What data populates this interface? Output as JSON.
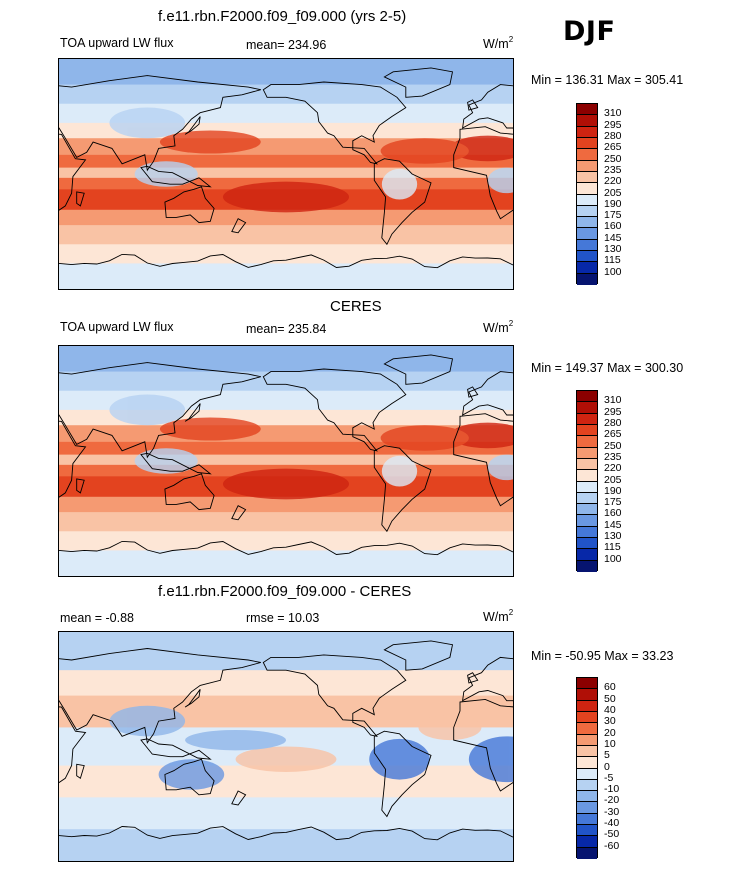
{
  "header": {
    "season": "DJF"
  },
  "panels": [
    {
      "id": "model",
      "title": "f.e11.rbn.F2000.f09_f09.000 (yrs 2-5)",
      "left_label": "TOA upward LW flux",
      "center_label": "mean= 234.96",
      "units": "W/m",
      "units_exp": "2",
      "minmax": "Min = 136.31 Max = 305.41",
      "levels": [
        "310",
        "295",
        "280",
        "265",
        "250",
        "235",
        "220",
        "205",
        "190",
        "175",
        "160",
        "145",
        "130",
        "115",
        "100"
      ],
      "colors": [
        "#8b0000",
        "#b00f06",
        "#cf2411",
        "#e3431f",
        "#ef6a3f",
        "#f59a72",
        "#f9c3a5",
        "#fde6d6",
        "#dcebf9",
        "#b6d2f2",
        "#8fb6ea",
        "#6a98e2",
        "#4578d8",
        "#2154c8",
        "#0728a8",
        "#061470"
      ],
      "field_type": "absolute"
    },
    {
      "id": "obs",
      "title": "CERES",
      "left_label": "TOA upward LW flux",
      "center_label": "mean= 235.84",
      "units": "W/m",
      "units_exp": "2",
      "minmax": "Min = 149.37 Max = 300.30",
      "levels": [
        "310",
        "295",
        "280",
        "265",
        "250",
        "235",
        "220",
        "205",
        "190",
        "175",
        "160",
        "145",
        "130",
        "115",
        "100"
      ],
      "colors": [
        "#8b0000",
        "#b00f06",
        "#cf2411",
        "#e3431f",
        "#ef6a3f",
        "#f59a72",
        "#f9c3a5",
        "#fde6d6",
        "#dcebf9",
        "#b6d2f2",
        "#8fb6ea",
        "#6a98e2",
        "#4578d8",
        "#2154c8",
        "#0728a8",
        "#061470"
      ],
      "field_type": "absolute"
    },
    {
      "id": "diff",
      "title": "f.e11.rbn.F2000.f09_f09.000 - CERES",
      "left_label": "mean =  -0.88",
      "center_label": "rmse =  10.03",
      "units": "W/m",
      "units_exp": "2",
      "minmax": "Min = -50.95 Max =  33.23",
      "levels": [
        "60",
        "50",
        "40",
        "30",
        "20",
        "10",
        "5",
        "0",
        "-5",
        "-10",
        "-20",
        "-30",
        "-40",
        "-50",
        "-60"
      ],
      "colors": [
        "#8b0000",
        "#b00f06",
        "#cf2411",
        "#e3431f",
        "#ef6a3f",
        "#f59a72",
        "#f9c3a5",
        "#fde6d6",
        "#dcebf9",
        "#b6d2f2",
        "#8fb6ea",
        "#6a98e2",
        "#4578d8",
        "#2154c8",
        "#0728a8",
        "#061470"
      ],
      "field_type": "difference"
    }
  ]
}
